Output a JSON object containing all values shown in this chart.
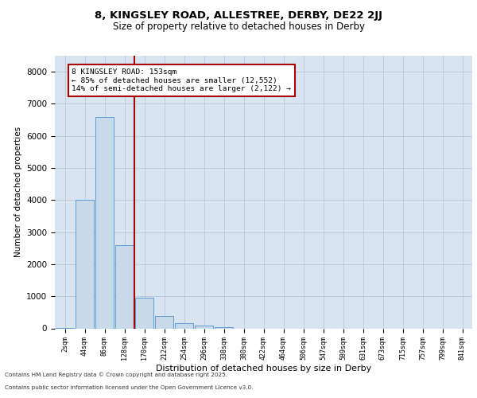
{
  "title1": "8, KINGSLEY ROAD, ALLESTREE, DERBY, DE22 2JJ",
  "title2": "Size of property relative to detached houses in Derby",
  "xlabel": "Distribution of detached houses by size in Derby",
  "ylabel": "Number of detached properties",
  "categories": [
    "2sqm",
    "44sqm",
    "86sqm",
    "128sqm",
    "170sqm",
    "212sqm",
    "254sqm",
    "296sqm",
    "338sqm",
    "380sqm",
    "422sqm",
    "464sqm",
    "506sqm",
    "547sqm",
    "589sqm",
    "631sqm",
    "673sqm",
    "715sqm",
    "757sqm",
    "799sqm",
    "841sqm"
  ],
  "values": [
    5,
    4000,
    6600,
    2600,
    950,
    380,
    150,
    80,
    30,
    0,
    0,
    0,
    0,
    0,
    0,
    0,
    0,
    0,
    0,
    0,
    0
  ],
  "bar_color": "#c8d9ea",
  "bar_edge_color": "#5b9bd5",
  "grid_color": "#b8c8dc",
  "background_color": "#d8e4f0",
  "vline_color": "#aa0000",
  "annotation_text": "8 KINGSLEY ROAD: 153sqm\n← 85% of detached houses are smaller (12,552)\n14% of semi-detached houses are larger (2,122) →",
  "annotation_box_color": "#aa0000",
  "ylim": [
    0,
    8500
  ],
  "yticks": [
    0,
    1000,
    2000,
    3000,
    4000,
    5000,
    6000,
    7000,
    8000
  ],
  "footer_line1": "Contains HM Land Registry data © Crown copyright and database right 2025.",
  "footer_line2": "Contains public sector information licensed under the Open Government Licence v3.0."
}
